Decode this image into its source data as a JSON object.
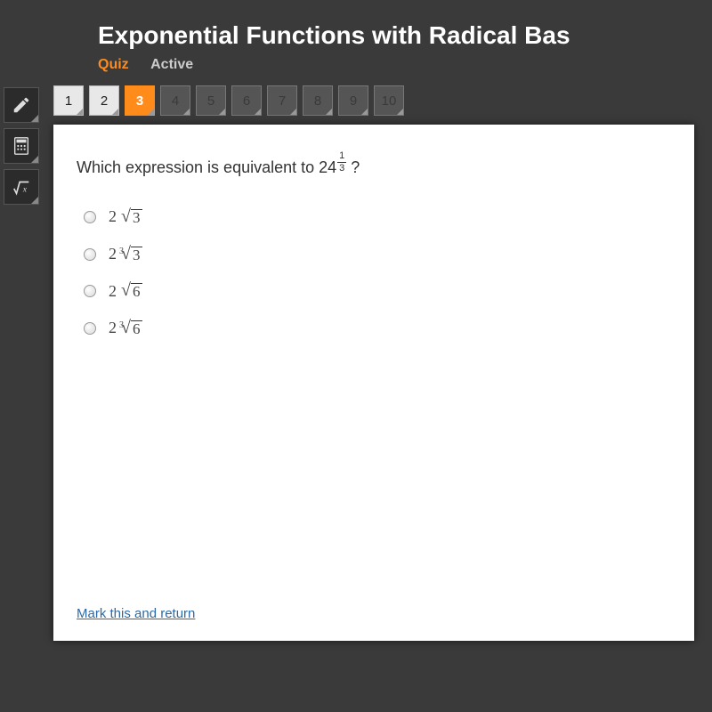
{
  "header": {
    "title": "Exponential Functions with Radical Bas",
    "tabs": {
      "quiz": "Quiz",
      "active": "Active"
    }
  },
  "tools": {
    "pencil": "pencil-icon",
    "calculator": "calculator-icon",
    "radical": "radical-icon"
  },
  "questionNav": {
    "items": [
      {
        "num": "1",
        "state": "answered"
      },
      {
        "num": "2",
        "state": "answered"
      },
      {
        "num": "3",
        "state": "current"
      },
      {
        "num": "4",
        "state": "locked"
      },
      {
        "num": "5",
        "state": "locked"
      },
      {
        "num": "6",
        "state": "locked"
      },
      {
        "num": "7",
        "state": "locked"
      },
      {
        "num": "8",
        "state": "locked"
      },
      {
        "num": "9",
        "state": "locked"
      },
      {
        "num": "10",
        "state": "locked"
      }
    ]
  },
  "question": {
    "prompt_pre": "Which expression is equivalent to ",
    "base": "24",
    "exp_top": "1",
    "exp_bot": "3",
    "prompt_post": "?",
    "options": [
      {
        "coef": "2",
        "index": "",
        "radicand": "3"
      },
      {
        "coef": "2",
        "index": "3",
        "radicand": "3"
      },
      {
        "coef": "2",
        "index": "",
        "radicand": "6"
      },
      {
        "coef": "2",
        "index": "3",
        "radicand": "6"
      }
    ],
    "footer_link": "Mark this and return"
  },
  "style": {
    "accent": "#ff8c1a",
    "background": "#3a3a3a",
    "panel_bg": "#ffffff",
    "link_color": "#2b6aa8"
  }
}
